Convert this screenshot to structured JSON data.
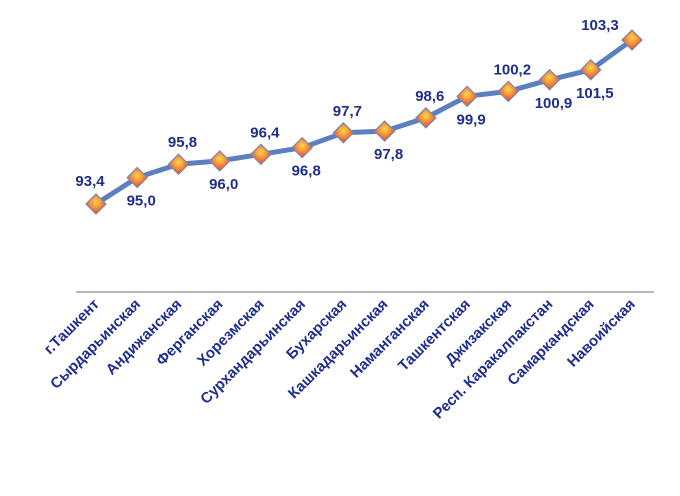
{
  "chart_data": {
    "type": "line",
    "title": "",
    "xlabel": "",
    "ylabel": "",
    "ylim": [
      85,
      104
    ],
    "grid": false,
    "legend": "none",
    "categories": [
      "г.Ташкент",
      "Сырдарьинская",
      "Андижанская",
      "Ферганская",
      "Хорезмская",
      "Сурхандарьинская",
      "Бухарская",
      "Кашкадарьинская",
      "Наманганская",
      "Ташкентская",
      "Джизакская",
      "Респ. Каракалпакстан",
      "Самаркандская",
      "Навоийская"
    ],
    "values": [
      93.4,
      95.0,
      95.8,
      96.0,
      96.4,
      96.8,
      97.7,
      97.8,
      98.6,
      99.9,
      100.2,
      100.9,
      101.5,
      103.3
    ],
    "value_labels": [
      "93,4",
      "95,0",
      "95,8",
      "96,0",
      "96,4",
      "96,8",
      "97,7",
      "97,8",
      "98,6",
      "99,9",
      "100,2",
      "100,9",
      "101,5",
      "103,3"
    ],
    "colors": {
      "line": "#5b7fbf",
      "marker_fill_center": "#ffd84a",
      "marker_fill_edge": "#e8452a",
      "marker_stroke": "#7a86b3",
      "text": "#1f2e8c",
      "axis": "#8c8c8c"
    }
  }
}
